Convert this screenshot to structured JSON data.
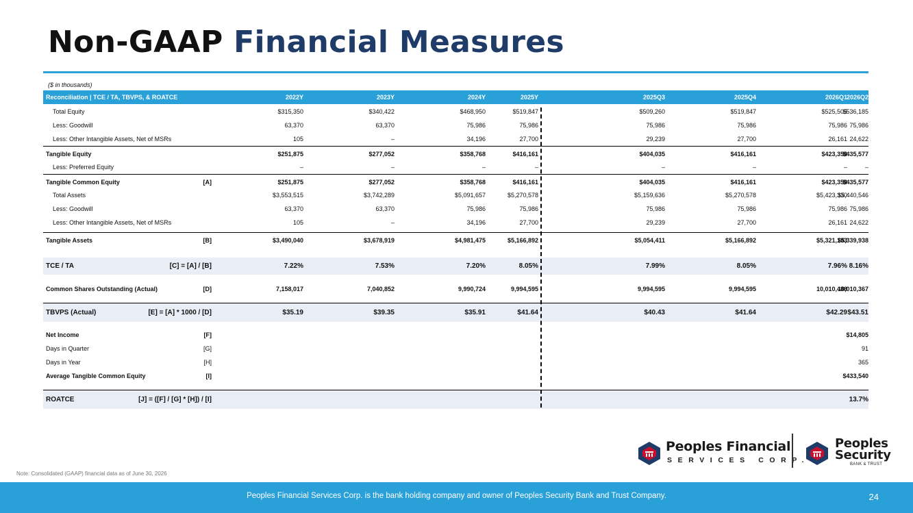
{
  "title": {
    "part1": "Non-GAAP",
    "part2": "Financial Measures"
  },
  "units_note": "($ in thousands)",
  "header": {
    "label": "Reconciliation | TCE / TA, TBVPS, & ROATCE",
    "columns": [
      "2022Y",
      "2023Y",
      "2024Y",
      "2025Y",
      "2025Q3",
      "2025Q4",
      "2026Q1",
      "2026Q2"
    ]
  },
  "rows": [
    {
      "label": "Total Equity",
      "ref": "",
      "values": [
        "$315,350",
        "$340,422",
        "$468,950",
        "$519,847",
        "$509,260",
        "$519,847",
        "$525,505",
        "$536,185"
      ]
    },
    {
      "label": "Less: Goodwill",
      "ref": "",
      "values": [
        "63,370",
        "63,370",
        "75,986",
        "75,986",
        "75,986",
        "75,986",
        "75,986",
        "75,986"
      ]
    },
    {
      "label": "Less: Other Intangible Assets, Net of MSRs",
      "ref": "",
      "values": [
        "105",
        "–",
        "34,196",
        "27,700",
        "29,239",
        "27,700",
        "26,161",
        "24,622"
      ]
    },
    {
      "label": "Tangible Equity",
      "ref": "",
      "values": [
        "$251,875",
        "$277,052",
        "$358,768",
        "$416,161",
        "$404,035",
        "$416,161",
        "$423,358",
        "$435,577"
      ]
    },
    {
      "label": "Less: Preferred Equity",
      "ref": "",
      "values": [
        "–",
        "–",
        "–",
        "–",
        "–",
        "–",
        "–",
        "–"
      ]
    },
    {
      "label": "Tangible Common Equity",
      "ref": "[A]",
      "values": [
        "$251,875",
        "$277,052",
        "$358,768",
        "$416,161",
        "$404,035",
        "$416,161",
        "$423,358",
        "$435,577"
      ]
    },
    {
      "label": "Total Assets",
      "ref": "",
      "values": [
        "$3,553,515",
        "$3,742,289",
        "$5,091,657",
        "$5,270,578",
        "$5,159,636",
        "$5,270,578",
        "$5,423,330",
        "$5,440,546"
      ]
    },
    {
      "label": "Less: Goodwill",
      "ref": "",
      "values": [
        "63,370",
        "63,370",
        "75,986",
        "75,986",
        "75,986",
        "75,986",
        "75,986",
        "75,986"
      ]
    },
    {
      "label": "Less: Other Intangible Assets, Net of MSRs",
      "ref": "",
      "values": [
        "105",
        "–",
        "34,196",
        "27,700",
        "29,239",
        "27,700",
        "26,161",
        "24,622"
      ]
    },
    {
      "label": "Tangible Assets",
      "ref": "[B]",
      "values": [
        "$3,490,040",
        "$3,678,919",
        "$4,981,475",
        "$5,166,892",
        "$5,054,411",
        "$5,166,892",
        "$5,321,183",
        "$5,339,938"
      ]
    },
    {
      "label": "TCE / TA",
      "ref": "[C] = [A] / [B]",
      "values": [
        "7.22%",
        "7.53%",
        "7.20%",
        "8.05%",
        "7.99%",
        "8.05%",
        "7.96%",
        "8.16%"
      ]
    },
    {
      "label": "Common Shares Outstanding (Actual)",
      "ref": "[D]",
      "values": [
        "7,158,017",
        "7,040,852",
        "9,990,724",
        "9,994,595",
        "9,994,595",
        "9,994,595",
        "10,010,488",
        "10,010,367"
      ]
    },
    {
      "label": "TBVPS (Actual)",
      "ref": "[E] = [A] * 1000 / [D]",
      "values": [
        "$35.19",
        "$39.35",
        "$35.91",
        "$41.64",
        "$40.43",
        "$41.64",
        "$42.29",
        "$43.51"
      ]
    },
    {
      "label": "Net Income",
      "ref": "[F]",
      "values": [
        "",
        "",
        "",
        "",
        "",
        "",
        "",
        "$14,805"
      ]
    },
    {
      "label": "Days in Quarter",
      "ref": "[G]",
      "values": [
        "",
        "",
        "",
        "",
        "",
        "",
        "",
        "91"
      ]
    },
    {
      "label": "Days in Year",
      "ref": "[H]",
      "values": [
        "",
        "",
        "",
        "",
        "",
        "",
        "",
        "365"
      ]
    },
    {
      "label": "Average Tangible Common Equity",
      "ref": "[I]",
      "values": [
        "",
        "",
        "",
        "",
        "",
        "",
        "",
        "$433,540"
      ]
    },
    {
      "label": "ROATCE",
      "ref": "[J] = ([F] / [G] * [H]) / [I]",
      "values": [
        "",
        "",
        "",
        "",
        "",
        "",
        "",
        "13.7%"
      ]
    }
  ],
  "note": "Note: Consolidated (GAAP) financial data as of June 30, 2026",
  "footer": {
    "text": "Peoples Financial Services Corp. is the bank holding company and owner of Peoples Security Bank and Trust Company.",
    "page_number": "24"
  },
  "logos": {
    "primary": {
      "name": "Peoples Financial",
      "sub": "SERVICES CORP."
    },
    "secondary": {
      "name_line1": "Peoples",
      "name_line2": "Security",
      "sub": "BANK & TRUST"
    }
  },
  "colors": {
    "accent": "#2aa0d8",
    "title_blue": "#1f3b68",
    "band": "#e9eef6"
  }
}
